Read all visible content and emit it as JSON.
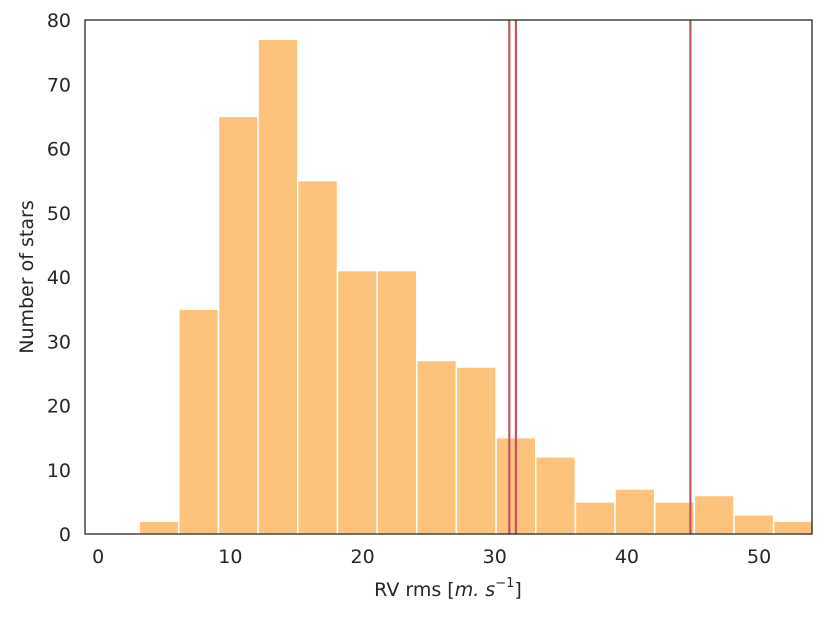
{
  "chart_data": {
    "type": "bar",
    "subtype": "histogram",
    "title": "",
    "ylabel": "Number of stars",
    "xlabel_prefix": "RV rms [",
    "xlabel_math": "m. s",
    "xlabel_exponent": "−1",
    "xlabel_suffix": "]",
    "xlim": [
      -1,
      54
    ],
    "ylim": [
      0,
      80
    ],
    "x_ticks": [
      0,
      10,
      20,
      30,
      40,
      50
    ],
    "y_ticks": [
      0,
      10,
      20,
      30,
      40,
      50,
      60,
      70,
      80
    ],
    "bins": [
      {
        "start": 3.1,
        "end": 6.1,
        "count": 2
      },
      {
        "start": 6.1,
        "end": 9.1,
        "count": 35
      },
      {
        "start": 9.1,
        "end": 12.1,
        "count": 65
      },
      {
        "start": 12.1,
        "end": 15.1,
        "count": 77
      },
      {
        "start": 15.1,
        "end": 18.1,
        "count": 55
      },
      {
        "start": 18.1,
        "end": 21.1,
        "count": 41
      },
      {
        "start": 21.1,
        "end": 24.1,
        "count": 41
      },
      {
        "start": 24.1,
        "end": 27.1,
        "count": 27
      },
      {
        "start": 27.1,
        "end": 30.1,
        "count": 26
      },
      {
        "start": 30.1,
        "end": 33.1,
        "count": 15
      },
      {
        "start": 33.1,
        "end": 36.1,
        "count": 12
      },
      {
        "start": 36.1,
        "end": 39.1,
        "count": 5
      },
      {
        "start": 39.1,
        "end": 42.1,
        "count": 7
      },
      {
        "start": 42.1,
        "end": 45.1,
        "count": 5
      },
      {
        "start": 45.1,
        "end": 48.1,
        "count": 6
      },
      {
        "start": 48.1,
        "end": 51.1,
        "count": 3
      },
      {
        "start": 51.1,
        "end": 54.1,
        "count": 2
      }
    ],
    "vertical_lines": [
      31.1,
      31.6,
      44.8
    ],
    "bar_color": "#fdc37c",
    "line_color": "#c0565b",
    "grid": false,
    "legend": "none"
  }
}
